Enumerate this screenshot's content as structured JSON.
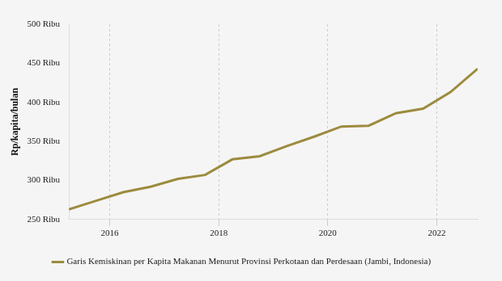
{
  "chart_data": {
    "type": "line",
    "y_label": "Rp/kapita/bulan",
    "x": [
      2015.25,
      2015.75,
      2016.25,
      2016.75,
      2017.25,
      2017.75,
      2018.25,
      2018.75,
      2019.25,
      2019.75,
      2020.25,
      2020.75,
      2021.25,
      2021.75,
      2022.25,
      2022.75
    ],
    "series": [
      {
        "name": "Garis Kemiskinan per Kapita Makanan Menurut Provinsi Perkotaan dan Perdesaan (Jambi, Indonesia)",
        "color": "#9c8b3e",
        "values": [
          263,
          274,
          285,
          292,
          302,
          307,
          327,
          331,
          344,
          356,
          369,
          370,
          386,
          392,
          413,
          443
        ]
      }
    ],
    "xlim": [
      2015.25,
      2022.75
    ],
    "xticks": [
      2016,
      2018,
      2020,
      2022
    ],
    "ylim": [
      250,
      500
    ],
    "yticks": [
      {
        "value": 250,
        "label": "250 Ribu"
      },
      {
        "value": 300,
        "label": "300 Ribu"
      },
      {
        "value": 350,
        "label": "350 Ribu"
      },
      {
        "value": 400,
        "label": "400 Ribu"
      },
      {
        "value": 450,
        "label": "450 Ribu"
      },
      {
        "value": 500,
        "label": "500 Ribu"
      }
    ],
    "grid": "x",
    "legend": "bottom"
  }
}
